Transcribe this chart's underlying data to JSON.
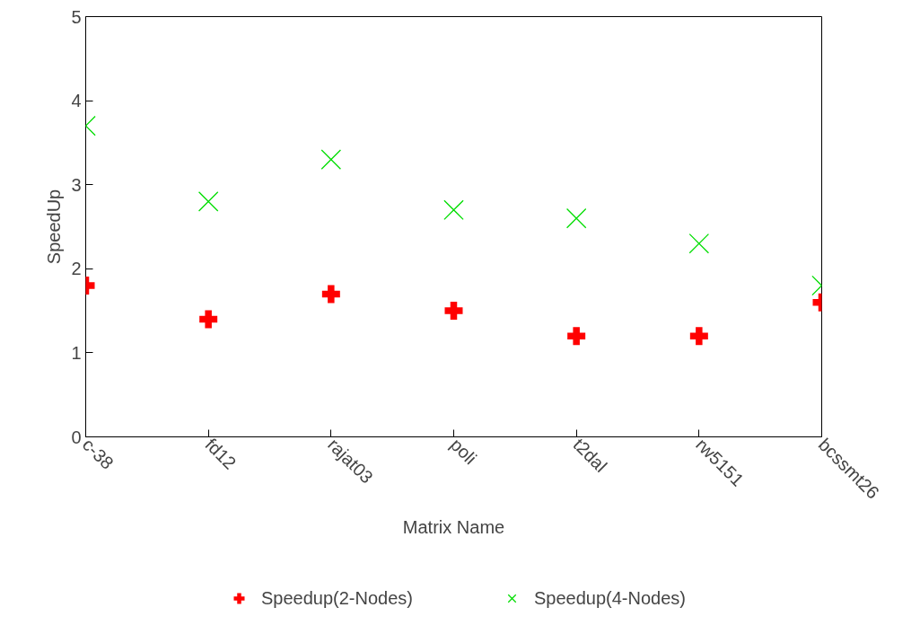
{
  "chart_data": {
    "type": "scatter",
    "xlabel": "Matrix Name",
    "ylabel": "SpeedUp",
    "categories": [
      "c-38",
      "fd12",
      "rajat03",
      "poli",
      "t2dal",
      "rw5151",
      "bcssmt26"
    ],
    "series": [
      {
        "name": "Speedup(2-Nodes)",
        "color": "#ff0000",
        "marker": "cross",
        "values": [
          1.8,
          1.4,
          1.7,
          1.5,
          1.2,
          1.2,
          1.6
        ]
      },
      {
        "name": "Speedup(4-Nodes)",
        "color": "#00dd00",
        "marker": "x",
        "values": [
          3.7,
          2.8,
          3.3,
          2.7,
          2.6,
          2.3,
          1.8
        ]
      }
    ],
    "ylim": [
      0,
      5
    ],
    "yticks": [
      0,
      1,
      2,
      3,
      4,
      5
    ],
    "grid": false,
    "legend": "bottom"
  }
}
